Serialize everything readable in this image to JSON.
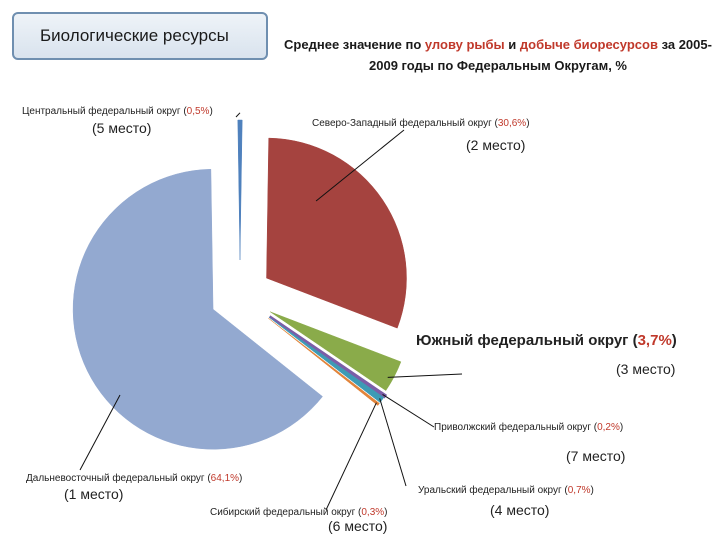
{
  "header": {
    "box_title": "Биологические ресурсы",
    "subtitle_pre": "Среднее значение по ",
    "subtitle_hl1": "улову рыбы",
    "subtitle_mid": " и ",
    "subtitle_hl2": "добыче биоресурсов",
    "subtitle_post": " за 2005-2009 годы по Федеральным  Округам, %"
  },
  "chart_data": {
    "type": "pie",
    "exploded": true,
    "slices": [
      {
        "name": "Северо-Западный федеральный округ",
        "value": 30.6,
        "value_label": "30,6%",
        "place": "(2 место)",
        "color": "#a5433f"
      },
      {
        "name": "Южный федеральный округ",
        "value": 3.7,
        "value_label": "3,7%",
        "place": "(3 место)",
        "color": "#8aab4a"
      },
      {
        "name": "Приволжский федеральный округ",
        "value": 0.2,
        "value_label": "0,2%",
        "place": "(7 место)",
        "color": "#7b5ea7"
      },
      {
        "name": "Уральский федеральный округ",
        "value": 0.7,
        "value_label": "0,7%",
        "place": "(4 место)",
        "color": "#3d9bb5"
      },
      {
        "name": "Сибирский федеральный округ",
        "value": 0.3,
        "value_label": "0,3%",
        "place": "(6 место)",
        "color": "#e2843a"
      },
      {
        "name": "Дальневосточный федеральный  округ",
        "value": 64.1,
        "value_label": "64,1%",
        "place": "(1 место)",
        "color": "#93a9d0"
      },
      {
        "name": "Центральный федеральный округ",
        "value": 0.5,
        "value_label": "0,5%",
        "place": "(5 место)",
        "color": "#4f81bd"
      }
    ]
  }
}
